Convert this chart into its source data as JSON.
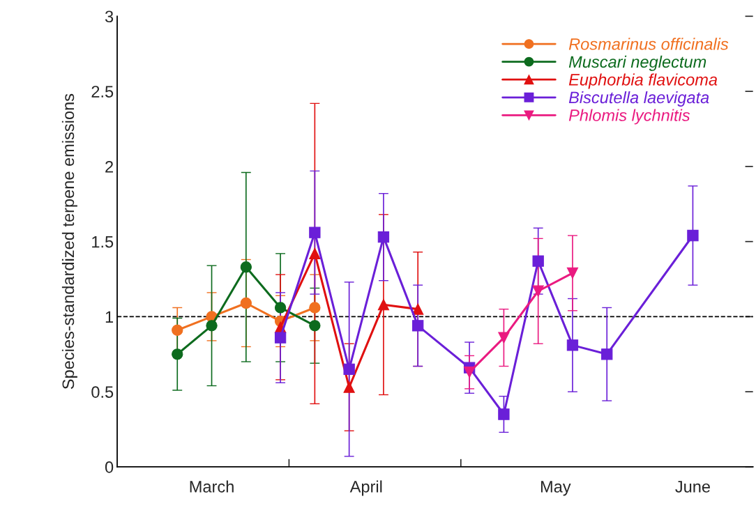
{
  "chart_data": {
    "type": "line",
    "ylabel": "Species-standardized terpene emissions",
    "categories": [
      null,
      null,
      null,
      null,
      null,
      "March",
      null,
      null,
      null,
      null,
      null,
      null,
      null,
      null,
      "April",
      null,
      null,
      null,
      null,
      null,
      null,
      null,
      null,
      null,
      null,
      "May",
      null,
      null,
      null,
      null,
      null,
      null,
      null,
      "June",
      null,
      null,
      null
    ],
    "ylim": [
      0,
      3
    ],
    "yticks": [
      0,
      0.5,
      1,
      1.5,
      2,
      2.5,
      3
    ],
    "legend": "top right",
    "ref_lines": [
      {
        "axis": "y",
        "value": 1,
        "line_style": "dashed",
        "color": "#000000"
      }
    ],
    "series": [
      {
        "name": "Rosmarinus officinalis",
        "color": "#f07020",
        "marker": "circle",
        "values": [
          null,
          null,
          null,
          0.91,
          null,
          1.0,
          null,
          1.09,
          null,
          0.97,
          null,
          1.06,
          null,
          null,
          null,
          null,
          null,
          null,
          null,
          null,
          null,
          null,
          null,
          null,
          null,
          null,
          null,
          null,
          null,
          null,
          null,
          null,
          null,
          null,
          null,
          null,
          null
        ],
        "errors": [
          null,
          null,
          null,
          0.15,
          null,
          0.16,
          null,
          0.29,
          null,
          0.17,
          null,
          0.22,
          null,
          null,
          null,
          null,
          null,
          null,
          null,
          null,
          null,
          null,
          null,
          null,
          null,
          null,
          null,
          null,
          null,
          null,
          null,
          null,
          null,
          null,
          null,
          null,
          null
        ]
      },
      {
        "name": "Muscari neglectum",
        "color": "#0d6b1e",
        "marker": "circle",
        "values": [
          null,
          null,
          null,
          0.75,
          null,
          0.94,
          null,
          1.33,
          null,
          1.06,
          null,
          0.94,
          null,
          null,
          null,
          null,
          null,
          null,
          null,
          null,
          null,
          null,
          null,
          null,
          null,
          null,
          null,
          null,
          null,
          null,
          null,
          null,
          null,
          null,
          null,
          null,
          null
        ],
        "errors": [
          null,
          null,
          null,
          0.24,
          null,
          0.4,
          null,
          0.63,
          null,
          0.36,
          null,
          0.25,
          null,
          null,
          null,
          null,
          null,
          null,
          null,
          null,
          null,
          null,
          null,
          null,
          null,
          null,
          null,
          null,
          null,
          null,
          null,
          null,
          null,
          null,
          null,
          null,
          null
        ]
      },
      {
        "name": "Euphorbia flavicoma",
        "color": "#e01010",
        "marker": "triangle",
        "values": [
          null,
          null,
          null,
          null,
          null,
          null,
          null,
          null,
          null,
          0.93,
          null,
          1.42,
          null,
          0.53,
          null,
          1.08,
          null,
          1.05,
          null,
          null,
          null,
          null,
          null,
          null,
          null,
          null,
          null,
          null,
          null,
          null,
          null,
          null,
          null,
          null,
          null,
          null,
          null
        ],
        "errors": [
          null,
          null,
          null,
          null,
          null,
          null,
          null,
          null,
          null,
          0.35,
          null,
          1.0,
          null,
          0.29,
          null,
          0.6,
          null,
          0.38,
          null,
          null,
          null,
          null,
          null,
          null,
          null,
          null,
          null,
          null,
          null,
          null,
          null,
          null,
          null,
          null,
          null,
          null,
          null
        ]
      },
      {
        "name": "Biscutella laevigata",
        "color": "#6a1fd8",
        "marker": "square",
        "values": [
          null,
          null,
          null,
          null,
          null,
          null,
          null,
          null,
          null,
          0.86,
          null,
          1.56,
          null,
          0.65,
          null,
          1.53,
          null,
          0.94,
          null,
          null,
          0.66,
          null,
          0.35,
          null,
          1.37,
          null,
          0.81,
          null,
          0.75,
          null,
          null,
          null,
          null,
          1.54,
          null,
          null,
          null
        ],
        "errors": [
          null,
          null,
          null,
          null,
          null,
          null,
          null,
          null,
          null,
          0.3,
          null,
          0.41,
          null,
          0.58,
          null,
          0.29,
          null,
          0.27,
          null,
          null,
          0.17,
          null,
          0.12,
          null,
          0.22,
          null,
          0.31,
          null,
          0.31,
          null,
          null,
          null,
          null,
          0.33,
          null,
          null,
          null
        ]
      },
      {
        "name": "Phlomis lychnitis",
        "color": "#ea1a80",
        "marker": "triangle_down",
        "values": [
          null,
          null,
          null,
          null,
          null,
          null,
          null,
          null,
          null,
          null,
          null,
          null,
          null,
          null,
          null,
          null,
          null,
          null,
          null,
          null,
          0.63,
          null,
          0.86,
          null,
          1.17,
          null,
          1.29,
          null,
          null,
          null,
          null,
          null,
          null,
          null,
          null,
          null,
          null
        ],
        "errors": [
          null,
          null,
          null,
          null,
          null,
          null,
          null,
          null,
          null,
          null,
          null,
          null,
          null,
          null,
          null,
          null,
          null,
          null,
          null,
          null,
          0.11,
          null,
          0.19,
          null,
          0.35,
          null,
          0.25,
          null,
          null,
          null,
          null,
          null,
          null,
          null,
          null,
          null,
          null
        ]
      }
    ]
  }
}
